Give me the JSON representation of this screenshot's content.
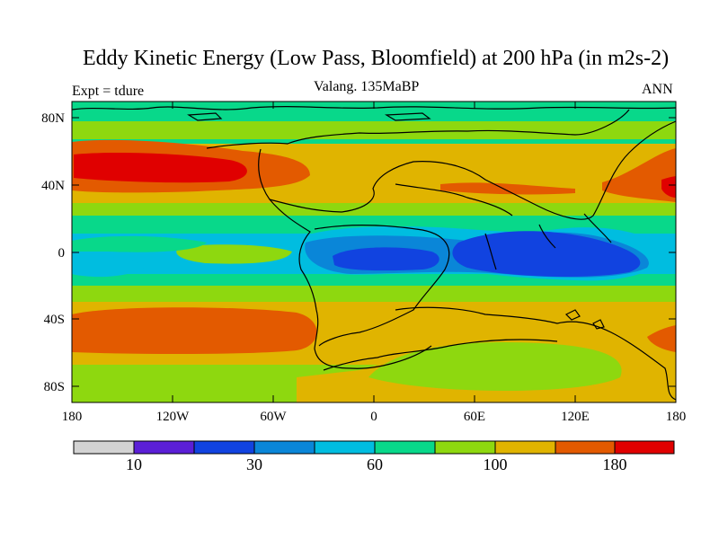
{
  "title": "Eddy Kinetic Energy (Low Pass, Bloomfield) at 200 hPa (in m2s-2)",
  "subtitle": "Valang.  135MaBP",
  "experiment_label": "Expt = tdure",
  "period_label": "ANN",
  "axes": {
    "lat_ticks": [
      "80N",
      "40N",
      "0",
      "40S",
      "80S"
    ],
    "lon_ticks": [
      "180",
      "120W",
      "60W",
      "0",
      "60E",
      "120E",
      "180"
    ]
  },
  "colorbar": {
    "labels": [
      "10",
      "30",
      "60",
      "100",
      "180"
    ],
    "colors": [
      "#d3d3d3",
      "#5b1fd6",
      "#1143e0",
      "#0a86d8",
      "#00bde0",
      "#08d88a",
      "#8ed80f",
      "#e0b400",
      "#e35a00",
      "#e00000"
    ]
  }
}
